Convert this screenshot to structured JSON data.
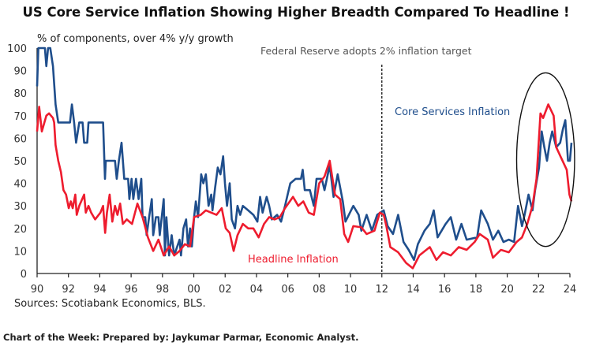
{
  "chart_data": {
    "type": "line",
    "title": "US Core Service Inflation Showing Higher Breadth Compared To Headline !",
    "ylabel": "% of components, over 4% y/y growth",
    "source": "Sources: Scotiabank Economics, BLS.",
    "footer": "Chart of the Week: Prepared by: Jaykumar Parmar, Economic Analyst.",
    "xlim": [
      1990,
      2024
    ],
    "ylim": [
      0,
      100
    ],
    "yticks": [
      0,
      10,
      20,
      30,
      40,
      50,
      60,
      70,
      80,
      90,
      100
    ],
    "xticks": [
      1990,
      1992,
      1994,
      1996,
      1998,
      2000,
      2002,
      2004,
      2006,
      2008,
      2010,
      2012,
      2014,
      2016,
      2018,
      2020,
      2022,
      2024
    ],
    "xtick_labels": [
      "90",
      "92",
      "94",
      "96",
      "98",
      "00",
      "02",
      "04",
      "06",
      "08",
      "10",
      "12",
      "14",
      "16",
      "18",
      "20",
      "22",
      "24"
    ],
    "grid": false,
    "annotations": {
      "vline": {
        "x": 2012,
        "label": "Federal Reserve adopts 2% inflation target"
      },
      "ellipse": {
        "x_range": [
          2020.6,
          2024.3
        ],
        "y_range": [
          12,
          89
        ]
      }
    },
    "series": [
      {
        "name": "Core Services Inflation",
        "color": "#1f4e8c",
        "points": [
          [
            1990,
            83
          ],
          [
            1990.08,
            100
          ],
          [
            1990.5,
            100
          ],
          [
            1990.59,
            92
          ],
          [
            1990.7,
            100
          ],
          [
            1990.84,
            100
          ],
          [
            1991.01,
            92
          ],
          [
            1991.18,
            75
          ],
          [
            1991.35,
            67
          ],
          [
            1992.1,
            67
          ],
          [
            1992.22,
            75
          ],
          [
            1992.36,
            67
          ],
          [
            1992.49,
            58
          ],
          [
            1992.69,
            67
          ],
          [
            1992.9,
            67
          ],
          [
            1993.0,
            58
          ],
          [
            1993.2,
            58
          ],
          [
            1993.28,
            67
          ],
          [
            1994.21,
            67
          ],
          [
            1994.33,
            42
          ],
          [
            1994.38,
            50
          ],
          [
            1994.97,
            50
          ],
          [
            1995.08,
            42
          ],
          [
            1995.22,
            50
          ],
          [
            1995.39,
            58
          ],
          [
            1995.56,
            42
          ],
          [
            1995.81,
            42
          ],
          [
            1995.89,
            33
          ],
          [
            1996.03,
            42
          ],
          [
            1996.14,
            33
          ],
          [
            1996.31,
            42
          ],
          [
            1996.48,
            33
          ],
          [
            1996.65,
            42
          ],
          [
            1996.73,
            25
          ],
          [
            1996.9,
            25
          ],
          [
            1996.99,
            17
          ],
          [
            1997.15,
            25
          ],
          [
            1997.32,
            33
          ],
          [
            1997.41,
            17
          ],
          [
            1997.58,
            25
          ],
          [
            1997.74,
            25
          ],
          [
            1997.83,
            17
          ],
          [
            1998.08,
            33
          ],
          [
            1998.16,
            8
          ],
          [
            1998.25,
            25
          ],
          [
            1998.42,
            8
          ],
          [
            1998.59,
            17
          ],
          [
            1998.75,
            8
          ],
          [
            1999.09,
            15
          ],
          [
            1999.18,
            8
          ],
          [
            1999.34,
            20
          ],
          [
            1999.51,
            24
          ],
          [
            1999.63,
            12
          ],
          [
            1999.76,
            20
          ],
          [
            1999.88,
            12
          ],
          [
            2000.02,
            25
          ],
          [
            2000.13,
            32
          ],
          [
            2000.27,
            25
          ],
          [
            2000.47,
            44
          ],
          [
            2000.61,
            40
          ],
          [
            2000.77,
            44
          ],
          [
            2000.94,
            30
          ],
          [
            2001.11,
            35
          ],
          [
            2001.19,
            28
          ],
          [
            2001.36,
            38
          ],
          [
            2001.53,
            47
          ],
          [
            2001.7,
            44
          ],
          [
            2001.87,
            52
          ],
          [
            2001.99,
            40
          ],
          [
            2002.12,
            30
          ],
          [
            2002.29,
            40
          ],
          [
            2002.42,
            24
          ],
          [
            2002.63,
            20
          ],
          [
            2002.79,
            30
          ],
          [
            2002.96,
            26
          ],
          [
            2003.13,
            30
          ],
          [
            2003.47,
            28
          ],
          [
            2003.8,
            26
          ],
          [
            2004.06,
            23
          ],
          [
            2004.23,
            34
          ],
          [
            2004.39,
            27
          ],
          [
            2004.65,
            34
          ],
          [
            2004.81,
            30
          ],
          [
            2004.98,
            24
          ],
          [
            2005.32,
            26
          ],
          [
            2005.57,
            23
          ],
          [
            2005.82,
            30
          ],
          [
            2005.99,
            35
          ],
          [
            2006.16,
            40
          ],
          [
            2006.5,
            42
          ],
          [
            2006.84,
            42
          ],
          [
            2006.95,
            46
          ],
          [
            2007.08,
            37
          ],
          [
            2007.41,
            37
          ],
          [
            2007.66,
            30
          ],
          [
            2007.83,
            42
          ],
          [
            2008.17,
            42
          ],
          [
            2008.34,
            37
          ],
          [
            2008.67,
            48
          ],
          [
            2008.92,
            34
          ],
          [
            2009.18,
            44
          ],
          [
            2009.51,
            32
          ],
          [
            2009.68,
            23
          ],
          [
            2010.18,
            30
          ],
          [
            2010.52,
            26
          ],
          [
            2010.69,
            19
          ],
          [
            2011.03,
            26
          ],
          [
            2011.36,
            19
          ],
          [
            2011.7,
            26
          ],
          [
            2012.12,
            28
          ],
          [
            2012.37,
            21
          ],
          [
            2012.71,
            17.5
          ],
          [
            2013.04,
            26
          ],
          [
            2013.38,
            14
          ],
          [
            2013.71,
            10.5
          ],
          [
            2014.05,
            6
          ],
          [
            2014.3,
            13
          ],
          [
            2014.72,
            19
          ],
          [
            2015.06,
            22
          ],
          [
            2015.31,
            28
          ],
          [
            2015.56,
            16
          ],
          [
            2016.07,
            22
          ],
          [
            2016.4,
            25
          ],
          [
            2016.74,
            15
          ],
          [
            2017.08,
            22
          ],
          [
            2017.41,
            15
          ],
          [
            2018.08,
            16
          ],
          [
            2018.34,
            28
          ],
          [
            2018.76,
            22
          ],
          [
            2019.09,
            15
          ],
          [
            2019.43,
            19
          ],
          [
            2019.76,
            14
          ],
          [
            2020.1,
            15
          ],
          [
            2020.44,
            14
          ],
          [
            2020.69,
            30
          ],
          [
            2020.94,
            21
          ],
          [
            2021.11,
            26
          ],
          [
            2021.36,
            35
          ],
          [
            2021.61,
            28
          ],
          [
            2021.78,
            37
          ],
          [
            2022.03,
            47
          ],
          [
            2022.2,
            63
          ],
          [
            2022.37,
            56
          ],
          [
            2022.54,
            50
          ],
          [
            2022.71,
            58
          ],
          [
            2022.87,
            63
          ],
          [
            2023.13,
            56
          ],
          [
            2023.38,
            58
          ],
          [
            2023.55,
            64
          ],
          [
            2023.71,
            68
          ],
          [
            2023.88,
            50
          ],
          [
            2024.0,
            50
          ],
          [
            2024.1,
            58
          ]
        ]
      },
      {
        "name": "Headline Inflation",
        "color": "#ee1c2e",
        "points": [
          [
            1990,
            63
          ],
          [
            1990.13,
            74
          ],
          [
            1990.3,
            63
          ],
          [
            1990.59,
            70
          ],
          [
            1990.76,
            71
          ],
          [
            1991.01,
            69
          ],
          [
            1991.09,
            67
          ],
          [
            1991.18,
            57
          ],
          [
            1991.35,
            50
          ],
          [
            1991.52,
            45
          ],
          [
            1991.68,
            37
          ],
          [
            1991.85,
            35
          ],
          [
            1992.02,
            29
          ],
          [
            1992.15,
            32
          ],
          [
            1992.27,
            29
          ],
          [
            1992.44,
            35
          ],
          [
            1992.53,
            26
          ],
          [
            1992.69,
            30
          ],
          [
            1993.0,
            35
          ],
          [
            1993.11,
            27
          ],
          [
            1993.28,
            30
          ],
          [
            1993.45,
            27
          ],
          [
            1993.7,
            24
          ],
          [
            1994.04,
            27
          ],
          [
            1994.21,
            30
          ],
          [
            1994.34,
            18
          ],
          [
            1994.46,
            27
          ],
          [
            1994.63,
            35
          ],
          [
            1994.8,
            23
          ],
          [
            1994.97,
            30
          ],
          [
            1995.13,
            26
          ],
          [
            1995.3,
            31
          ],
          [
            1995.47,
            22
          ],
          [
            1995.72,
            24
          ],
          [
            1996.06,
            22
          ],
          [
            1996.4,
            31
          ],
          [
            1996.73,
            25
          ],
          [
            1997.07,
            16
          ],
          [
            1997.41,
            10
          ],
          [
            1997.74,
            15
          ],
          [
            1998.08,
            8
          ],
          [
            1998.42,
            12
          ],
          [
            1998.75,
            8
          ],
          [
            1999.09,
            10
          ],
          [
            1999.43,
            13
          ],
          [
            1999.76,
            12
          ],
          [
            2000.02,
            25
          ],
          [
            2000.44,
            26
          ],
          [
            2000.77,
            28
          ],
          [
            2001.11,
            27
          ],
          [
            2001.45,
            26
          ],
          [
            2001.78,
            29
          ],
          [
            2002.04,
            20
          ],
          [
            2002.29,
            18
          ],
          [
            2002.54,
            10
          ],
          [
            2002.79,
            17
          ],
          [
            2003.13,
            22
          ],
          [
            2003.47,
            20
          ],
          [
            2003.8,
            20
          ],
          [
            2004.14,
            16
          ],
          [
            2004.48,
            22
          ],
          [
            2004.81,
            25
          ],
          [
            2005.15,
            24
          ],
          [
            2005.49,
            25
          ],
          [
            2005.82,
            29
          ],
          [
            2006.33,
            34
          ],
          [
            2006.67,
            30
          ],
          [
            2006.99,
            32
          ],
          [
            2007.33,
            27
          ],
          [
            2007.66,
            26
          ],
          [
            2008.0,
            40
          ],
          [
            2008.34,
            43
          ],
          [
            2008.67,
            50
          ],
          [
            2009.01,
            35
          ],
          [
            2009.34,
            33
          ],
          [
            2009.6,
            17.5
          ],
          [
            2009.85,
            14
          ],
          [
            2010.18,
            21
          ],
          [
            2010.69,
            20.5
          ],
          [
            2011.03,
            17.5
          ],
          [
            2011.53,
            19
          ],
          [
            2011.87,
            27
          ],
          [
            2012.12,
            26
          ],
          [
            2012.29,
            21
          ],
          [
            2012.54,
            11.7
          ],
          [
            2013.04,
            9.4
          ],
          [
            2013.55,
            4.7
          ],
          [
            2013.97,
            2.3
          ],
          [
            2014.39,
            8
          ],
          [
            2015.06,
            11.7
          ],
          [
            2015.48,
            6
          ],
          [
            2015.9,
            9.4
          ],
          [
            2016.4,
            8
          ],
          [
            2016.91,
            11.7
          ],
          [
            2017.41,
            10.5
          ],
          [
            2017.92,
            14
          ],
          [
            2018.25,
            17.5
          ],
          [
            2018.76,
            15
          ],
          [
            2019.09,
            7
          ],
          [
            2019.6,
            10.5
          ],
          [
            2020.1,
            9.4
          ],
          [
            2020.6,
            14
          ],
          [
            2020.94,
            16
          ],
          [
            2021.28,
            22
          ],
          [
            2021.61,
            30
          ],
          [
            2021.87,
            42
          ],
          [
            2022.12,
            71
          ],
          [
            2022.29,
            69
          ],
          [
            2022.62,
            75
          ],
          [
            2022.96,
            70
          ],
          [
            2023.13,
            56
          ],
          [
            2023.46,
            51
          ],
          [
            2023.8,
            46
          ],
          [
            2023.97,
            35
          ],
          [
            2024.1,
            32
          ]
        ]
      }
    ]
  }
}
